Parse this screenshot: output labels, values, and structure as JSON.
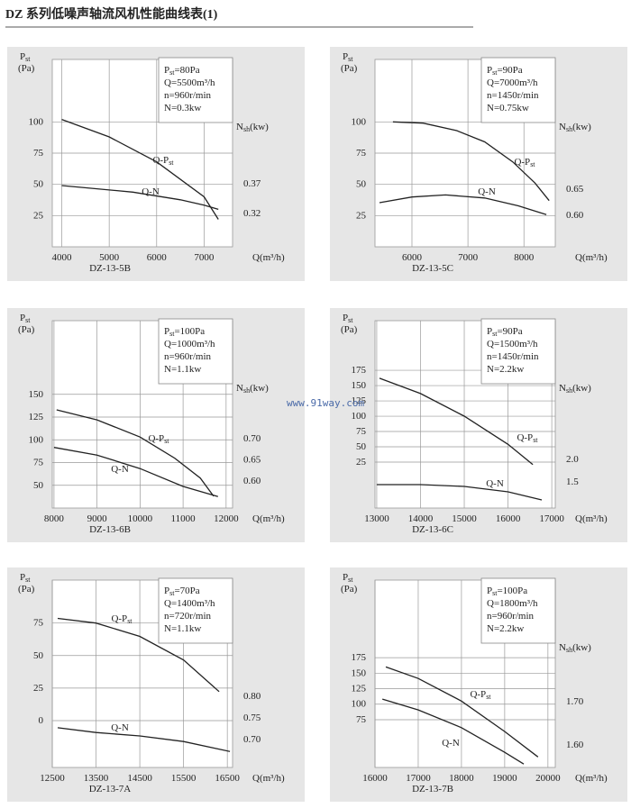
{
  "title": "DZ 系列低噪声轴流风机性能曲线表(1)",
  "watermark": "www.91way.com",
  "chart_data": [
    {
      "type": "line",
      "caption": "DZ-13-5B",
      "y_label": "Pst",
      "y_unit": "(Pa)",
      "y2_label": "Nsh(kw)",
      "x_label": "Q(m³/h)",
      "info": [
        "Pst=80Pa",
        "Q=5500m³/h",
        "n=960r/min",
        "N=0.3kw"
      ],
      "xlim": [
        3800,
        7600
      ],
      "xticks": [
        4000,
        5000,
        6000,
        7000
      ],
      "ylim": [
        0,
        150
      ],
      "yticks": [
        25,
        50,
        75,
        100
      ],
      "y2lim": [
        0.264,
        0.579
      ],
      "y2ticks": [
        0.32,
        0.37
      ],
      "grid": true,
      "series": [
        {
          "name": "Q-Pst",
          "color": "#222222",
          "x": [
            4000,
            5000,
            6000,
            7000,
            7300
          ],
          "values": [
            102,
            88,
            68,
            40,
            22
          ]
        },
        {
          "name": "Q-N",
          "color": "#222222",
          "axis": "y2",
          "x": [
            4000,
            5500,
            6500,
            7000,
            7300
          ],
          "values": [
            0.367,
            0.356,
            0.343,
            0.334,
            0.327
          ]
        }
      ]
    },
    {
      "type": "line",
      "caption": "DZ-13-5C",
      "y_label": "Pst",
      "y_unit": "(Pa)",
      "y2_label": "Nsh(kw)",
      "x_label": "Q(m³/h)",
      "info": [
        "Pst=90Pa",
        "Q=7000m³/h",
        "n=1450r/min",
        "N=0.75kw"
      ],
      "xlim": [
        5340,
        8560
      ],
      "xticks": [
        6000,
        7000,
        8000
      ],
      "ylim": [
        0,
        150
      ],
      "yticks": [
        25,
        50,
        75,
        100
      ],
      "y2lim": [
        0.539,
        0.9
      ],
      "y2ticks": [
        {
          "value": 0.6,
          "label": "0.60"
        },
        0.65
      ],
      "grid": true,
      "series": [
        {
          "name": "Q-Pst",
          "color": "#222222",
          "x": [
            5660,
            6200,
            6800,
            7300,
            7800,
            8200,
            8450
          ],
          "values": [
            100,
            99,
            93,
            84,
            68,
            51,
            37
          ]
        },
        {
          "name": "Q-N",
          "color": "#222222",
          "axis": "y2",
          "x": [
            5420,
            6000,
            6600,
            7300,
            7900,
            8400
          ],
          "values": [
            0.624,
            0.635,
            0.639,
            0.633,
            0.618,
            0.601
          ]
        }
      ]
    },
    {
      "type": "line",
      "caption": "DZ-13-6B",
      "y_label": "Pst",
      "y_unit": "(Pa)",
      "y2_label": "Nsh(kw)",
      "x_label": "Q(m³/h)",
      "info": [
        "Pst=100Pa",
        "Q=1000m³/h",
        "n=960r/min",
        "N=1.1kw"
      ],
      "xlim": [
        7960,
        12150
      ],
      "xticks": [
        8000,
        9000,
        10000,
        11000,
        12000
      ],
      "ylim": [
        25,
        231
      ],
      "yticks": [
        50,
        75,
        100,
        125,
        150
      ],
      "y2lim": [
        0.536,
        0.978
      ],
      "y2ticks": [
        {
          "value": 0.6,
          "label": "0.60"
        },
        0.65,
        {
          "value": 0.7,
          "label": "0.70"
        }
      ],
      "grid": true,
      "series": [
        {
          "name": "Q-Pst",
          "color": "#222222",
          "x": [
            8060,
            9000,
            10000,
            10800,
            11400,
            11710
          ],
          "values": [
            133,
            122,
            103,
            80,
            58,
            38
          ]
        },
        {
          "name": "Q-N",
          "color": "#222222",
          "axis": "y2",
          "x": [
            8000,
            9000,
            10000,
            11000,
            11810
          ],
          "values": [
            0.679,
            0.661,
            0.629,
            0.587,
            0.563
          ]
        }
      ]
    },
    {
      "type": "line",
      "caption": "DZ-13-6C",
      "y_label": "Pst",
      "y_unit": "(Pa)",
      "y2_label": "Nsh(kw)",
      "x_label": "Q(m³/h)",
      "info": [
        "Pst=90Pa",
        "Q=1500m³/h",
        "n=1450r/min",
        "N=2.2kw"
      ],
      "xlim": [
        12960,
        17080
      ],
      "xticks": [
        13000,
        14000,
        15000,
        16000,
        17000
      ],
      "ylim": [
        -50,
        256
      ],
      "yticks": [
        25,
        50,
        75,
        100,
        125,
        150,
        175
      ],
      "y2lim": [
        0.92,
        5.08
      ],
      "y2ticks": [
        1.5,
        {
          "value": 2,
          "label": "2.0"
        }
      ],
      "grid": true,
      "series": [
        {
          "name": "Q-Pst",
          "color": "#222222",
          "x": [
            13063,
            14000,
            15000,
            16000,
            16568
          ],
          "values": [
            162,
            137,
            100,
            54,
            21
          ]
        },
        {
          "name": "Q-N",
          "color": "#222222",
          "axis": "y2",
          "x": [
            13000,
            14000,
            15000,
            16000,
            16770
          ],
          "values": [
            1.44,
            1.44,
            1.4,
            1.28,
            1.1
          ]
        }
      ]
    },
    {
      "type": "line",
      "caption": "DZ-13-7A",
      "y_label": "Pst",
      "y_unit": "(Pa)",
      "x_label": "Q(m³/h)",
      "info": [
        "Pst=70Pa",
        "Q=1400m³/h",
        "n=720r/min",
        "N=1.1kw"
      ],
      "xlim": [
        12500,
        16620
      ],
      "xticks": [
        12500,
        13500,
        14500,
        15500,
        16500
      ],
      "ylim": [
        -36,
        108
      ],
      "yticks": [
        0,
        25,
        50,
        75
      ],
      "y2lim": [
        0.635,
        1.069
      ],
      "y2ticks": [
        {
          "value": 0.7,
          "label": "0.70"
        },
        0.75,
        {
          "value": 0.8,
          "label": "0.80"
        }
      ],
      "grid": true,
      "series": [
        {
          "name": "Q-Pst",
          "color": "#222222",
          "x": [
            12624,
            13500,
            14500,
            15500,
            16314
          ],
          "values": [
            78.6,
            75,
            64.7,
            46.6,
            22.3
          ]
        },
        {
          "name": "Q-N",
          "color": "#222222",
          "axis": "y2",
          "x": [
            12624,
            13500,
            14500,
            15500,
            16560
          ],
          "values": [
            0.727,
            0.716,
            0.708,
            0.695,
            0.672
          ]
        }
      ]
    },
    {
      "type": "line",
      "caption": "DZ-13-7B",
      "y_label": "Pst",
      "y_unit": "(Pa)",
      "y2_label": "Nsh(kw)",
      "x_label": "Q(m³/h)",
      "info": [
        "Pst=100Pa",
        "Q=1800m³/h",
        "n=960r/min",
        "N=2.2kw"
      ],
      "xlim": [
        16000,
        20170
      ],
      "xticks": [
        16000,
        17000,
        18000,
        19000,
        20000
      ],
      "ylim": [
        -2,
        300
      ],
      "yticks": [
        75,
        100,
        125,
        150,
        175
      ],
      "y2lim": [
        1.548,
        1.981
      ],
      "y2ticks": [
        {
          "value": 1.6,
          "label": "1.60"
        },
        {
          "value": 1.7,
          "label": "1.70"
        }
      ],
      "grid": true,
      "series": [
        {
          "name": "Q-Pst",
          "color": "#222222",
          "x": [
            16250,
            17000,
            18000,
            19000,
            19770
          ],
          "values": [
            160,
            141.5,
            105,
            56,
            15
          ]
        },
        {
          "name": "Q-N",
          "color": "#222222",
          "axis": "y2",
          "x": [
            16170,
            17000,
            18000,
            19000,
            19440
          ],
          "values": [
            1.706,
            1.681,
            1.64,
            1.583,
            1.556
          ]
        }
      ]
    }
  ]
}
